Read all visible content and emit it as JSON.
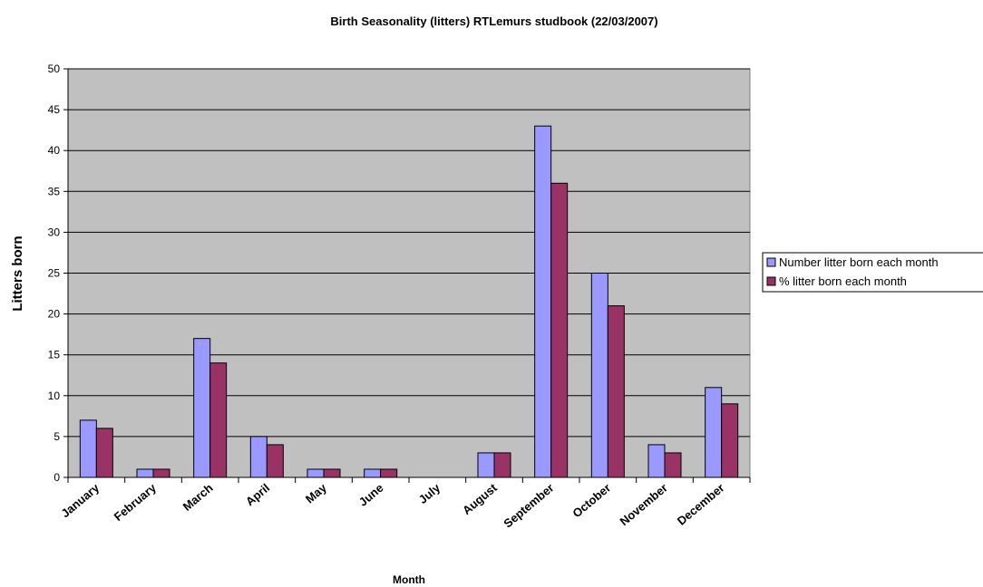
{
  "chart_data": {
    "type": "bar",
    "title": "Birth Seasonality (litters) RTLemurs studbook (22/03/2007)",
    "xlabel": "Month",
    "ylabel": "Litters born",
    "categories": [
      "January",
      "February",
      "March",
      "April",
      "May",
      "June",
      "July",
      "August",
      "September",
      "October",
      "November",
      "December"
    ],
    "series": [
      {
        "name": "Number litter born each month",
        "color": "#9999ff",
        "values": [
          7,
          1,
          17,
          5,
          1,
          1,
          0,
          3,
          43,
          25,
          4,
          11
        ]
      },
      {
        "name": "% litter born each month",
        "color": "#993366",
        "values": [
          6,
          1,
          14,
          4,
          1,
          1,
          0,
          3,
          36,
          21,
          3,
          9
        ]
      }
    ],
    "ylim": [
      0,
      50
    ],
    "yticks": [
      "0",
      "5",
      "10",
      "15",
      "20",
      "25",
      "30",
      "35",
      "40",
      "45",
      "50"
    ],
    "grid": true,
    "plot_background": "#c0c0c0",
    "legend_position": "right"
  }
}
